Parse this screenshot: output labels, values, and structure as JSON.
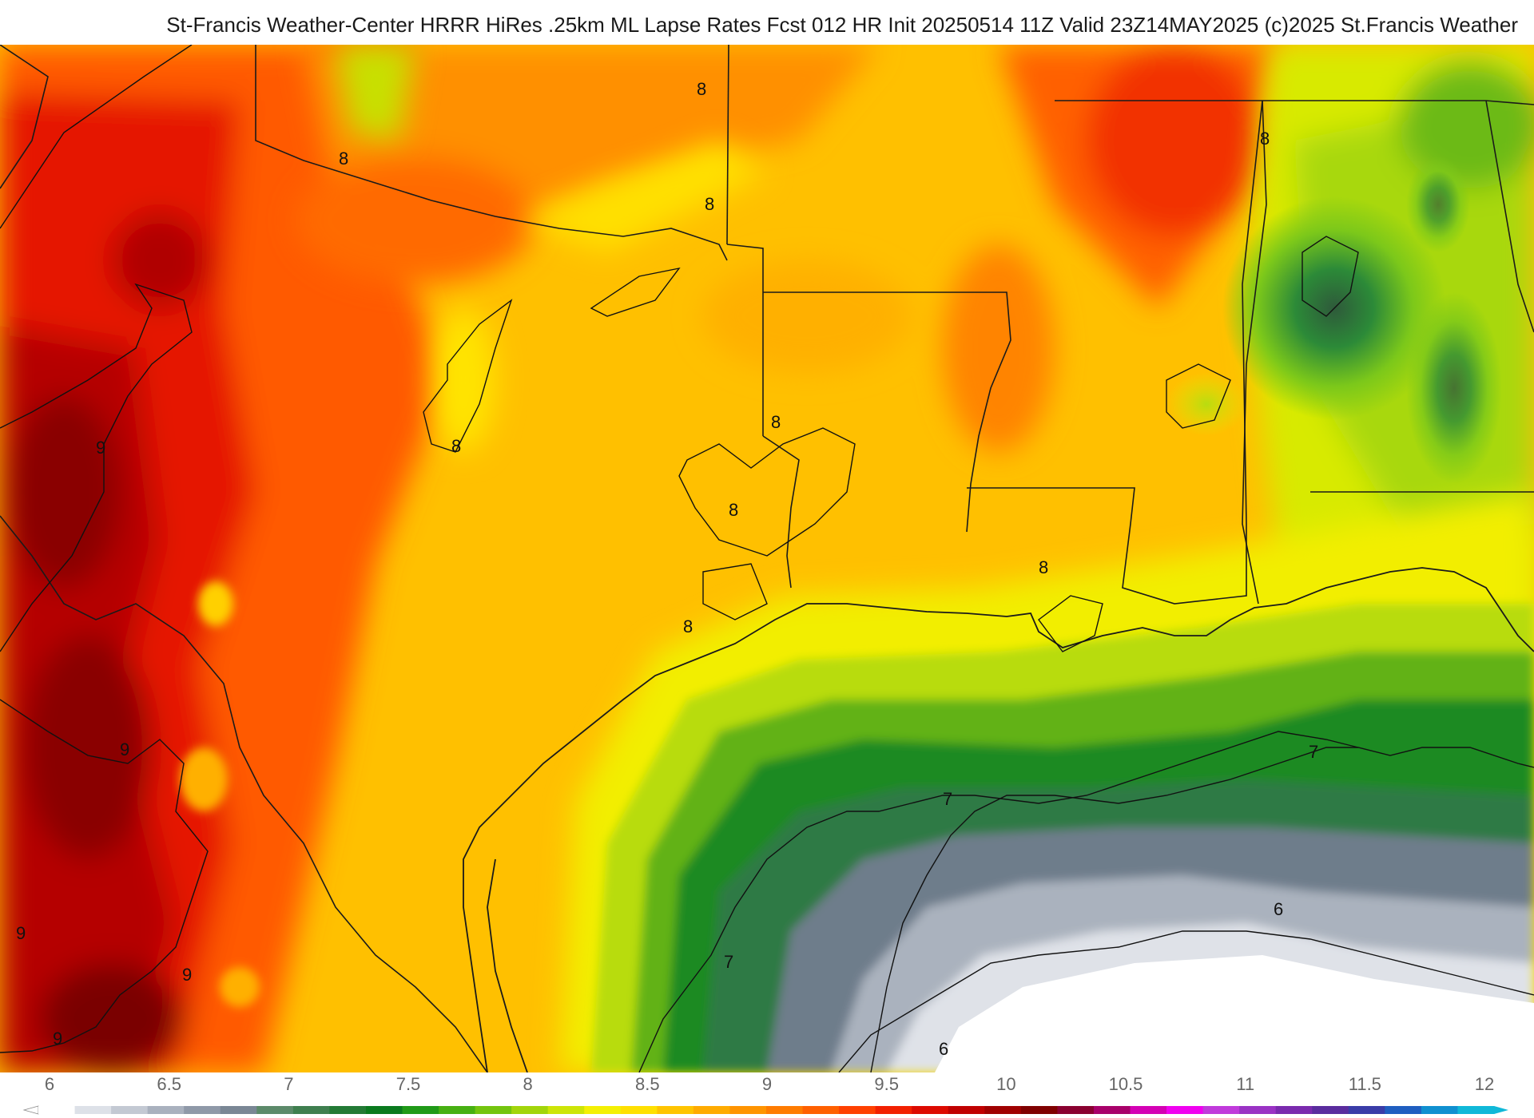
{
  "header": {
    "title": "St-Francis Weather-Center HRRR HiRes .25km ML Lapse Rates  Fcst 012 HR Init 20250514 11Z  Valid 23Z14MAY2025    (c)2025 St.Francis Weather"
  },
  "map": {
    "contour_labels": [
      "9",
      "9",
      "9",
      "9",
      "9",
      "8",
      "8",
      "8",
      "8",
      "8",
      "8",
      "8",
      "8",
      "8",
      "7",
      "7",
      "7",
      "6",
      "6"
    ]
  },
  "colorbar": {
    "ticks": [
      "6",
      "6.5",
      "7",
      "7.5",
      "8",
      "8.5",
      "9",
      "9.5",
      "10",
      "10.5",
      "11",
      "11.5",
      "12"
    ],
    "colors": [
      "#ffffff",
      "#dde1e8",
      "#c3c9d3",
      "#a9b1be",
      "#8f99a8",
      "#7a8795",
      "#5c8a6a",
      "#3f7f4f",
      "#237a35",
      "#0a7a1e",
      "#209a18",
      "#47b012",
      "#74c40e",
      "#a2d50b",
      "#cde507",
      "#f4f004",
      "#ffe000",
      "#ffc400",
      "#ffab00",
      "#ff9400",
      "#ff7c00",
      "#ff6000",
      "#ff4000",
      "#f22000",
      "#dd0a00",
      "#c00000",
      "#a00000",
      "#800000",
      "#8a0030",
      "#a8006a",
      "#d400b4",
      "#f000f0",
      "#c03adb",
      "#9a32c4",
      "#7a2aae",
      "#5a2c9e",
      "#3a3ca8",
      "#1f5ec0",
      "#1090d0",
      "#10b8d8"
    ]
  }
}
